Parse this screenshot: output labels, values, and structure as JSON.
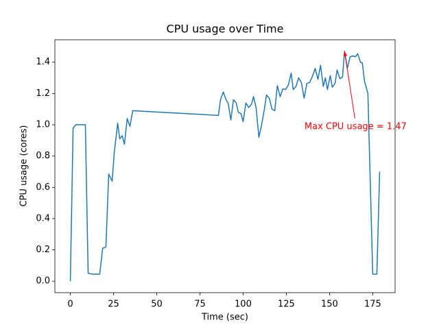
{
  "chart_data": {
    "type": "line",
    "title": "CPU usage over Time",
    "xlabel": "Time (sec)",
    "ylabel": "CPU usage (cores)",
    "annotation": "Max CPU usage = 1.47",
    "annotation_color": "#ff0000",
    "color": "#1f77b4",
    "x": [
      0,
      1.6,
      3.2,
      4.4,
      8.7,
      10.3,
      13,
      17,
      18.7,
      20.6,
      22.2,
      24.2,
      25.4,
      27.4,
      28.6,
      30,
      31.3,
      32.9,
      34.5,
      36.1,
      85.7,
      86.9,
      88.5,
      90.1,
      91.3,
      92.9,
      94.4,
      96,
      97.2,
      98.8,
      100,
      101.6,
      103.2,
      104.8,
      106,
      107.5,
      109.1,
      110.7,
      112.3,
      113.5,
      115.1,
      116.7,
      118.3,
      119.8,
      121.4,
      123,
      124.6,
      126.2,
      127.8,
      129,
      130.6,
      132.1,
      133.7,
      135.3,
      136.9,
      138.5,
      140.1,
      141.7,
      143.3,
      144.8,
      146.4,
      147.6,
      148.8,
      150.4,
      151.6,
      153.2,
      154.4,
      156,
      157.5,
      158.7,
      160.3,
      161.9,
      163.5,
      165.1,
      166.3,
      167.9,
      169,
      170.2,
      172.2,
      175,
      177.4,
      179
    ],
    "values": [
      0,
      0.98,
      1.0,
      1.0,
      1.0,
      0.05,
      0.045,
      0.045,
      0.21,
      0.22,
      0.685,
      0.64,
      0.82,
      1.01,
      0.91,
      0.93,
      0.875,
      1.04,
      0.99,
      1.09,
      1.06,
      1.16,
      1.21,
      1.16,
      1.14,
      1.03,
      1.16,
      1.14,
      1.08,
      1.07,
      1.02,
      1.14,
      1.11,
      1.13,
      1.18,
      1.11,
      0.92,
      1.0,
      1.1,
      1.19,
      1.17,
      1.1,
      1.09,
      1.25,
      1.18,
      1.23,
      1.225,
      1.255,
      1.33,
      1.225,
      1.245,
      1.3,
      1.27,
      1.17,
      1.265,
      1.27,
      1.31,
      1.36,
      1.29,
      1.38,
      1.245,
      1.3,
      1.225,
      1.315,
      1.24,
      1.265,
      1.35,
      1.295,
      1.305,
      1.47,
      1.36,
      1.435,
      1.44,
      1.435,
      1.455,
      1.4,
      1.395,
      1.28,
      1.2,
      0.045,
      0.045,
      0.7
    ],
    "xlim": [
      -8.95,
      187.95
    ],
    "ylim": [
      -0.0735,
      1.5435
    ],
    "xticks": [
      0,
      25,
      50,
      75,
      100,
      125,
      150,
      175
    ],
    "yticks": [
      {
        "value": 0,
        "label": "0.0"
      },
      0.2,
      0.4,
      0.6,
      0.8,
      {
        "value": 1,
        "label": "1.0"
      },
      1.2,
      1.4
    ]
  }
}
